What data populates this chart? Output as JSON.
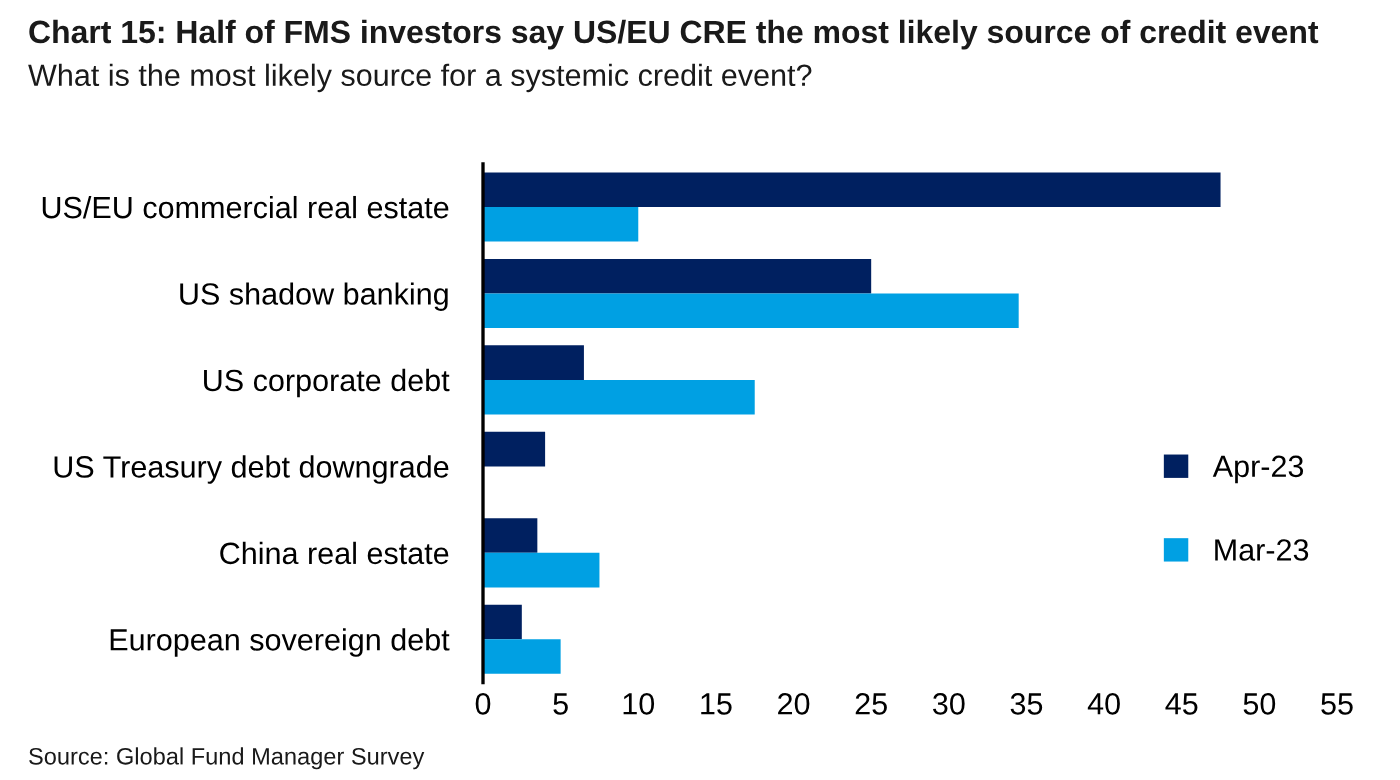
{
  "chart_data": {
    "type": "bar",
    "orientation": "horizontal",
    "title": "Chart 15: Half of FMS investors say US/EU CRE the most likely source of credit event",
    "subtitle": "What is the most likely source for a systemic credit event?",
    "categories": [
      "US/EU commercial real estate",
      "US shadow banking",
      "US corporate debt",
      "US Treasury debt downgrade",
      "China real estate",
      "European sovereign debt"
    ],
    "series": [
      {
        "name": "Apr-23",
        "color": "#002060",
        "values": [
          47.5,
          25,
          6.5,
          4,
          3.5,
          2.5
        ]
      },
      {
        "name": "Mar-23",
        "color": "#00a0e3",
        "values": [
          10,
          34.5,
          17.5,
          0,
          7.5,
          5
        ]
      }
    ],
    "xlim": [
      0,
      55
    ],
    "xticks": [
      0,
      5,
      10,
      15,
      20,
      25,
      30,
      35,
      40,
      45,
      50,
      55
    ],
    "grid": false,
    "legend": "bottom right",
    "annotations": [
      "Source: Global Fund Manager Survey"
    ]
  }
}
